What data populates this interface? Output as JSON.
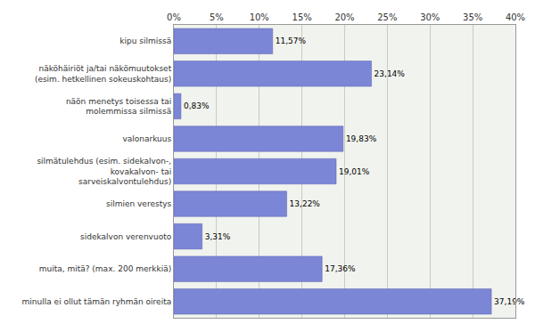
{
  "chart_data": {
    "type": "bar",
    "orientation": "horizontal",
    "categories": [
      "kipu silmissä",
      "näköhäiriöt ja/tai näkömuutokset\n(esim. hetkellinen sokeuskohtaus)",
      "näön menetys toisessa tai\nmolemmissa silmissä",
      "valonarkuus",
      "silmätulehdus (esim. sidekalvon-,\nkovakalvon- tai\nsarveiskalvontulehdus)",
      "silmien verestys",
      "sidekalvon verenvuoto",
      "muita, mitä? (max. 200 merkkiä)",
      "minulla ei ollut tämän ryhmän oireita"
    ],
    "values": [
      11.57,
      23.14,
      0.83,
      19.83,
      19.01,
      13.22,
      3.31,
      17.36,
      37.19
    ],
    "value_labels": [
      "11,57%",
      "23,14%",
      "0,83%",
      "19,83%",
      "19,01%",
      "13,22%",
      "3,31%",
      "17,36%",
      "37,19%"
    ],
    "data_labels": true,
    "color": "#7c86d6",
    "xlim": [
      0,
      40
    ],
    "xticks": [
      {
        "value": 0,
        "label": "0%"
      },
      {
        "value": 5,
        "label": "5%"
      },
      {
        "value": 10,
        "label": "10%"
      },
      {
        "value": 15,
        "label": "15%"
      },
      {
        "value": 20,
        "label": "20%"
      },
      {
        "value": 25,
        "label": "25%"
      },
      {
        "value": 30,
        "label": "30%"
      },
      {
        "value": 35,
        "label": "35%"
      },
      {
        "value": 40,
        "label": "40%"
      }
    ],
    "grid": true
  }
}
